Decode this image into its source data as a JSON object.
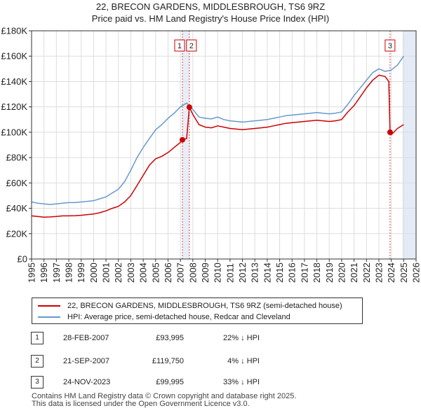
{
  "chart_data": {
    "type": "line",
    "title": "22, BRECON GARDENS, MIDDLESBROUGH, TS6 9RZ",
    "subtitle": "Price paid vs. HM Land Registry's House Price Index (HPI)",
    "xlim": [
      1995,
      2026
    ],
    "ylim": [
      0,
      180000
    ],
    "x_ticks": [
      1995,
      1996,
      1997,
      1998,
      1999,
      2000,
      2001,
      2002,
      2003,
      2004,
      2005,
      2006,
      2007,
      2008,
      2009,
      2010,
      2011,
      2012,
      2013,
      2014,
      2015,
      2016,
      2017,
      2018,
      2019,
      2020,
      2021,
      2022,
      2023,
      2024,
      2025,
      2026
    ],
    "y_ticks": [
      0,
      20000,
      40000,
      60000,
      80000,
      100000,
      120000,
      140000,
      160000,
      180000
    ],
    "y_tick_labels": [
      "£0",
      "£20K",
      "£40K",
      "£60K",
      "£80K",
      "£100K",
      "£120K",
      "£140K",
      "£160K",
      "£180K"
    ],
    "future_shading_from": 2024.9,
    "series": [
      {
        "name": "22, BRECON GARDENS, MIDDLESBROUGH, TS6 9RZ (semi-detached house)",
        "color": "#cc0000",
        "x": [
          1995.0,
          1995.5,
          1996.0,
          1996.5,
          1997.0,
          1997.5,
          1998.0,
          1998.5,
          1999.0,
          1999.5,
          2000.0,
          2000.5,
          2001.0,
          2001.5,
          2002.0,
          2002.5,
          2003.0,
          2003.5,
          2004.0,
          2004.5,
          2005.0,
          2005.5,
          2006.0,
          2006.5,
          2007.0,
          2007.16,
          2007.5,
          2007.72,
          2008.0,
          2008.5,
          2009.0,
          2009.5,
          2010.0,
          2010.5,
          2011.0,
          2011.5,
          2012.0,
          2012.5,
          2013.0,
          2013.5,
          2014.0,
          2014.5,
          2015.0,
          2015.5,
          2016.0,
          2016.5,
          2017.0,
          2017.5,
          2018.0,
          2018.5,
          2019.0,
          2019.5,
          2020.0,
          2020.5,
          2021.0,
          2021.5,
          2022.0,
          2022.5,
          2023.0,
          2023.5,
          2023.8,
          2023.9,
          2024.0,
          2024.5,
          2025.0
        ],
        "y": [
          34000,
          33500,
          33000,
          33200,
          33500,
          34000,
          34000,
          34200,
          34500,
          35000,
          35500,
          36500,
          38000,
          40000,
          41500,
          45000,
          50000,
          58000,
          66000,
          74000,
          79000,
          81000,
          84000,
          88000,
          92000,
          93995,
          95000,
          119750,
          114000,
          106000,
          104000,
          103500,
          105000,
          104000,
          103000,
          102500,
          102000,
          102500,
          103000,
          103500,
          104000,
          105000,
          106000,
          107000,
          107500,
          108000,
          108500,
          109000,
          109500,
          109000,
          108500,
          109000,
          110000,
          116000,
          121000,
          128000,
          135000,
          141000,
          145000,
          144000,
          140000,
          99995,
          98000,
          103000,
          106000
        ]
      },
      {
        "name": "HPI: Average price, semi-detached house, Redcar and Cleveland",
        "color": "#6699cc",
        "x": [
          1995.0,
          1995.5,
          1996.0,
          1996.5,
          1997.0,
          1997.5,
          1998.0,
          1998.5,
          1999.0,
          1999.5,
          2000.0,
          2000.5,
          2001.0,
          2001.5,
          2002.0,
          2002.5,
          2003.0,
          2003.5,
          2004.0,
          2004.5,
          2005.0,
          2005.5,
          2006.0,
          2006.5,
          2007.0,
          2007.5,
          2008.0,
          2008.5,
          2009.0,
          2009.5,
          2010.0,
          2010.5,
          2011.0,
          2011.5,
          2012.0,
          2012.5,
          2013.0,
          2013.5,
          2014.0,
          2014.5,
          2015.0,
          2015.5,
          2016.0,
          2016.5,
          2017.0,
          2017.5,
          2018.0,
          2018.5,
          2019.0,
          2019.5,
          2020.0,
          2020.5,
          2021.0,
          2021.5,
          2022.0,
          2022.5,
          2023.0,
          2023.5,
          2024.0,
          2024.5,
          2025.0
        ],
        "y": [
          45000,
          44000,
          43500,
          43000,
          43500,
          44000,
          44500,
          44500,
          45000,
          45500,
          46000,
          47500,
          49000,
          52000,
          55000,
          61000,
          70000,
          80000,
          88000,
          95000,
          102000,
          106000,
          111000,
          115000,
          120000,
          123000,
          118000,
          112000,
          111000,
          110500,
          112000,
          110000,
          109000,
          108500,
          108000,
          108500,
          109000,
          109500,
          110000,
          111000,
          112000,
          113000,
          113500,
          114000,
          114500,
          115000,
          115500,
          115000,
          114500,
          115000,
          116000,
          122000,
          129000,
          135000,
          141000,
          147000,
          150000,
          148000,
          149000,
          153000,
          160000
        ]
      }
    ],
    "markers": [
      {
        "label": "1",
        "x": 2007.16,
        "y": 93995
      },
      {
        "label": "2",
        "x": 2007.72,
        "y": 119750
      },
      {
        "label": "3",
        "x": 2023.9,
        "y": 99995
      }
    ]
  },
  "legend": {
    "property_label": "22, BRECON GARDENS, MIDDLESBROUGH, TS6 9RZ (semi-detached house)",
    "hpi_label": "HPI: Average price, semi-detached house, Redcar and Cleveland"
  },
  "transactions": [
    {
      "num": "1",
      "date": "28-FEB-2007",
      "price": "£93,995",
      "diff": "22% ↓ HPI"
    },
    {
      "num": "2",
      "date": "21-SEP-2007",
      "price": "£119,750",
      "diff": "4% ↓ HPI"
    },
    {
      "num": "3",
      "date": "24-NOV-2023",
      "price": "£99,995",
      "diff": "33% ↓ HPI"
    }
  ],
  "footer": {
    "line1": "Contains HM Land Registry data © Crown copyright and database right 2025.",
    "line2": "This data is licensed under the Open Government Licence v3.0."
  }
}
